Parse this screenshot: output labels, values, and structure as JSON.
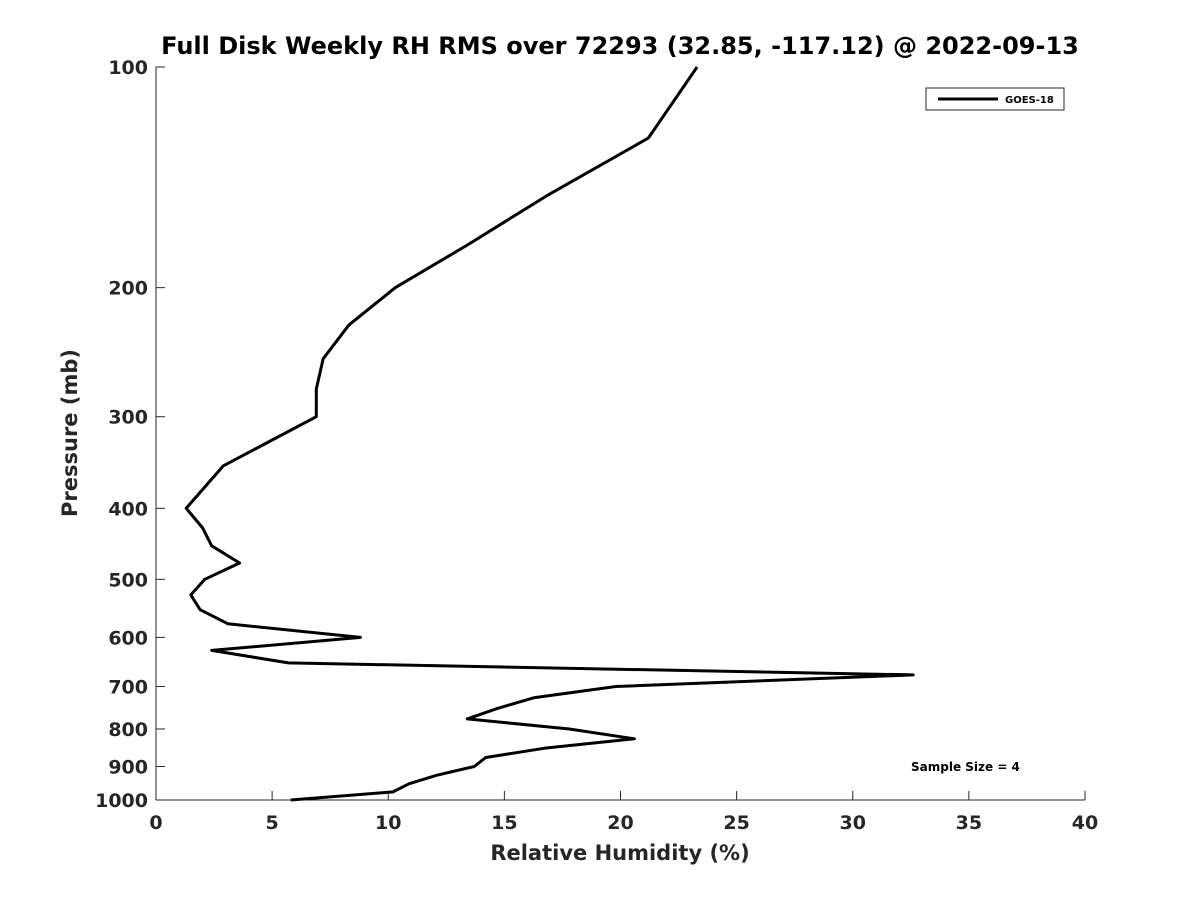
{
  "chart_data": {
    "type": "line",
    "title": "Full Disk Weekly RH RMS over 72293 (32.85, -117.12) @ 2022-09-13",
    "xlabel": "Relative Humidity (%)",
    "ylabel": "Pressure (mb)",
    "xlim": [
      0,
      40
    ],
    "ylim": [
      100,
      1000
    ],
    "y_scale": "log",
    "y_reversed": true,
    "x_ticks": [
      0,
      5,
      10,
      15,
      20,
      25,
      30,
      35,
      40
    ],
    "y_ticks": [
      100,
      200,
      300,
      400,
      500,
      600,
      700,
      800,
      900,
      1000
    ],
    "grid": false,
    "legend_position": "top-right",
    "annotation": "Sample Size = 4",
    "line_color": "#000000",
    "series": [
      {
        "name": "GOES-18",
        "points": [
          {
            "x": 23.3,
            "y": 100
          },
          {
            "x": 21.2,
            "y": 125
          },
          {
            "x": 16.8,
            "y": 150
          },
          {
            "x": 13.4,
            "y": 175
          },
          {
            "x": 10.3,
            "y": 200
          },
          {
            "x": 8.3,
            "y": 225
          },
          {
            "x": 7.2,
            "y": 250
          },
          {
            "x": 6.9,
            "y": 275
          },
          {
            "x": 6.9,
            "y": 300
          },
          {
            "x": 2.9,
            "y": 350
          },
          {
            "x": 1.3,
            "y": 400
          },
          {
            "x": 2.0,
            "y": 425
          },
          {
            "x": 2.4,
            "y": 450
          },
          {
            "x": 3.6,
            "y": 475
          },
          {
            "x": 2.1,
            "y": 500
          },
          {
            "x": 1.5,
            "y": 525
          },
          {
            "x": 1.9,
            "y": 550
          },
          {
            "x": 3.1,
            "y": 575
          },
          {
            "x": 8.8,
            "y": 600
          },
          {
            "x": 2.4,
            "y": 625
          },
          {
            "x": 5.7,
            "y": 650
          },
          {
            "x": 32.6,
            "y": 675
          },
          {
            "x": 19.8,
            "y": 700
          },
          {
            "x": 16.3,
            "y": 725
          },
          {
            "x": 14.7,
            "y": 750
          },
          {
            "x": 13.4,
            "y": 775
          },
          {
            "x": 17.8,
            "y": 800
          },
          {
            "x": 20.6,
            "y": 825
          },
          {
            "x": 16.7,
            "y": 850
          },
          {
            "x": 14.2,
            "y": 875
          },
          {
            "x": 13.7,
            "y": 900
          },
          {
            "x": 12.1,
            "y": 925
          },
          {
            "x": 10.9,
            "y": 950
          },
          {
            "x": 10.2,
            "y": 975
          },
          {
            "x": 5.8,
            "y": 1000
          }
        ]
      }
    ]
  }
}
